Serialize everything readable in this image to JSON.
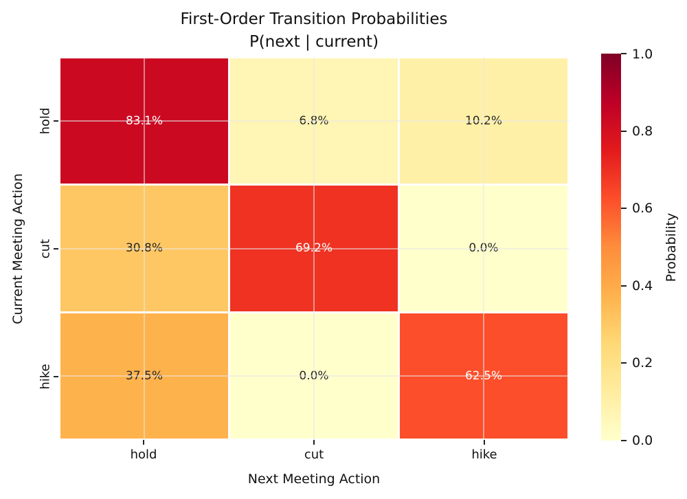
{
  "figure": {
    "title_line1": "First-Order Transition Probabilities",
    "title_line2": "P(next | current)",
    "xlabel": "Next Meeting Action",
    "ylabel": "Current Meeting Action",
    "colorbar": {
      "label": "Probability",
      "tick_labels": [
        "1.0",
        "0.8",
        "0.6",
        "0.4",
        "0.2",
        "0.0"
      ]
    }
  },
  "chart_data": {
    "type": "heatmap",
    "title": "First-Order Transition Probabilities\nP(next | current)",
    "xlabel": "Next Meeting Action",
    "ylabel": "Current Meeting Action",
    "x_categories": [
      "hold",
      "cut",
      "hike"
    ],
    "y_categories": [
      "hold",
      "cut",
      "hike"
    ],
    "values_percent": [
      [
        83.1,
        6.8,
        10.2
      ],
      [
        30.8,
        69.2,
        0.0
      ],
      [
        37.5,
        0.0,
        62.5
      ]
    ],
    "cell_labels": [
      [
        "83.1%",
        "6.8%",
        "10.2%"
      ],
      [
        "30.8%",
        "69.2%",
        "0.0%"
      ],
      [
        "37.5%",
        "0.0%",
        "62.5%"
      ]
    ],
    "colormap": "YlOrRd",
    "colorbar_label": "Probability",
    "colorbar_range": [
      0.0,
      1.0
    ],
    "colorbar_ticks": [
      1.0,
      0.8,
      0.6,
      0.4,
      0.2,
      0.0
    ],
    "legend_position": "right-colorbar",
    "grid": true,
    "cell_colors": [
      [
        "#cb0a22",
        "#fff5b4",
        "#fff0a8"
      ],
      [
        "#fec763",
        "#ef3222",
        "#ffffcc"
      ],
      [
        "#feb24c",
        "#ffffcc",
        "#fc4e2a"
      ]
    ],
    "cell_text_colors": [
      [
        "#ffffff",
        "#262626",
        "#262626"
      ],
      [
        "#262626",
        "#ffffff",
        "#262626"
      ],
      [
        "#262626",
        "#262626",
        "#ffffff"
      ]
    ],
    "colormap_stops": [
      "#ffffcc 0%",
      "#ffeda0 12.5%",
      "#fed976 25%",
      "#feb24c 37.5%",
      "#fd8d3c 50%",
      "#fc4e2a 62.5%",
      "#e31a1c 75%",
      "#bd0026 87.5%",
      "#800026 100%"
    ]
  }
}
